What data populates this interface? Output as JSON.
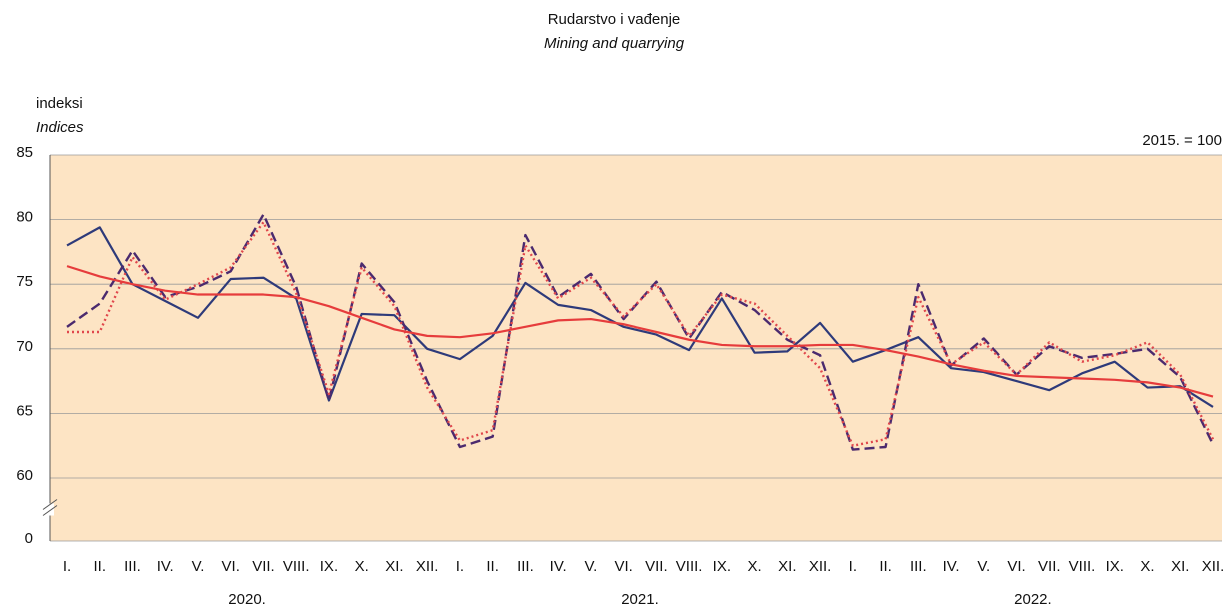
{
  "chart_data": {
    "type": "line",
    "title": "Rudarstvo i vađenje",
    "subtitle": "Mining and quarrying",
    "y_label": "indeksi",
    "y_label_en": "Indices",
    "annotation": "2015. = 100",
    "categories": [
      "I.",
      "II.",
      "III.",
      "IV.",
      "V.",
      "VI.",
      "VII.",
      "VIII.",
      "IX.",
      "X.",
      "XI.",
      "XII.",
      "I.",
      "II.",
      "III.",
      "IV.",
      "V.",
      "VI.",
      "VII.",
      "VIII.",
      "IX.",
      "X.",
      "XI.",
      "XII.",
      "I.",
      "II.",
      "III.",
      "IV.",
      "V.",
      "VI.",
      "VII.",
      "VIII.",
      "IX.",
      "X.",
      "XI.",
      "XII."
    ],
    "years": [
      "2020.",
      "2021.",
      "2022."
    ],
    "ylim": [
      0,
      85
    ],
    "axis_break": [
      0,
      60
    ],
    "yticks": [
      0,
      60,
      65,
      70,
      75,
      80,
      85
    ],
    "grid": true,
    "background": "#fde4c4",
    "series": [
      {
        "color": "#2e3a7a",
        "dash": "solid",
        "values": [
          78.0,
          79.4,
          75.0,
          73.7,
          72.4,
          75.4,
          75.5,
          73.9,
          66.0,
          72.7,
          72.6,
          70.0,
          69.2,
          71.0,
          75.1,
          73.4,
          73.0,
          71.7,
          71.1,
          69.9,
          73.9,
          69.7,
          69.8,
          72.0,
          69.0,
          69.9,
          70.9,
          68.5,
          68.2,
          67.5,
          66.8,
          68.1,
          69.0,
          67.0,
          67.1,
          65.5
        ]
      },
      {
        "color": "#4b2a6e",
        "dash": "dashed",
        "values": [
          71.7,
          73.5,
          77.6,
          74.0,
          74.8,
          76.0,
          80.4,
          74.8,
          66.0,
          76.6,
          73.6,
          67.5,
          62.4,
          63.2,
          78.8,
          74.0,
          75.8,
          72.3,
          75.2,
          70.8,
          74.4,
          73.0,
          70.7,
          69.5,
          62.2,
          62.4,
          75.0,
          68.7,
          70.8,
          68.0,
          70.2,
          69.3,
          69.6,
          70.0,
          67.8,
          62.6
        ]
      },
      {
        "color": "#e0474c",
        "dash": "dotted",
        "values": [
          71.3,
          71.3,
          77.1,
          73.8,
          75.0,
          76.3,
          79.8,
          74.3,
          66.5,
          76.3,
          73.3,
          67.0,
          62.9,
          63.7,
          78.0,
          73.9,
          75.5,
          72.5,
          75.0,
          71.0,
          74.2,
          73.5,
          71.0,
          68.5,
          62.5,
          63.0,
          74.0,
          68.8,
          70.5,
          68.0,
          70.5,
          69.0,
          69.5,
          70.5,
          68.0,
          63.0
        ]
      },
      {
        "color": "#e63c3c",
        "dash": "solid",
        "values": [
          76.4,
          75.6,
          75.0,
          74.5,
          74.2,
          74.2,
          74.2,
          74.0,
          73.3,
          72.4,
          71.5,
          71.0,
          70.9,
          71.2,
          71.7,
          72.2,
          72.3,
          71.9,
          71.3,
          70.7,
          70.3,
          70.2,
          70.2,
          70.3,
          70.3,
          69.9,
          69.4,
          68.8,
          68.3,
          67.9,
          67.8,
          67.7,
          67.6,
          67.4,
          67.0,
          66.3
        ]
      }
    ]
  }
}
